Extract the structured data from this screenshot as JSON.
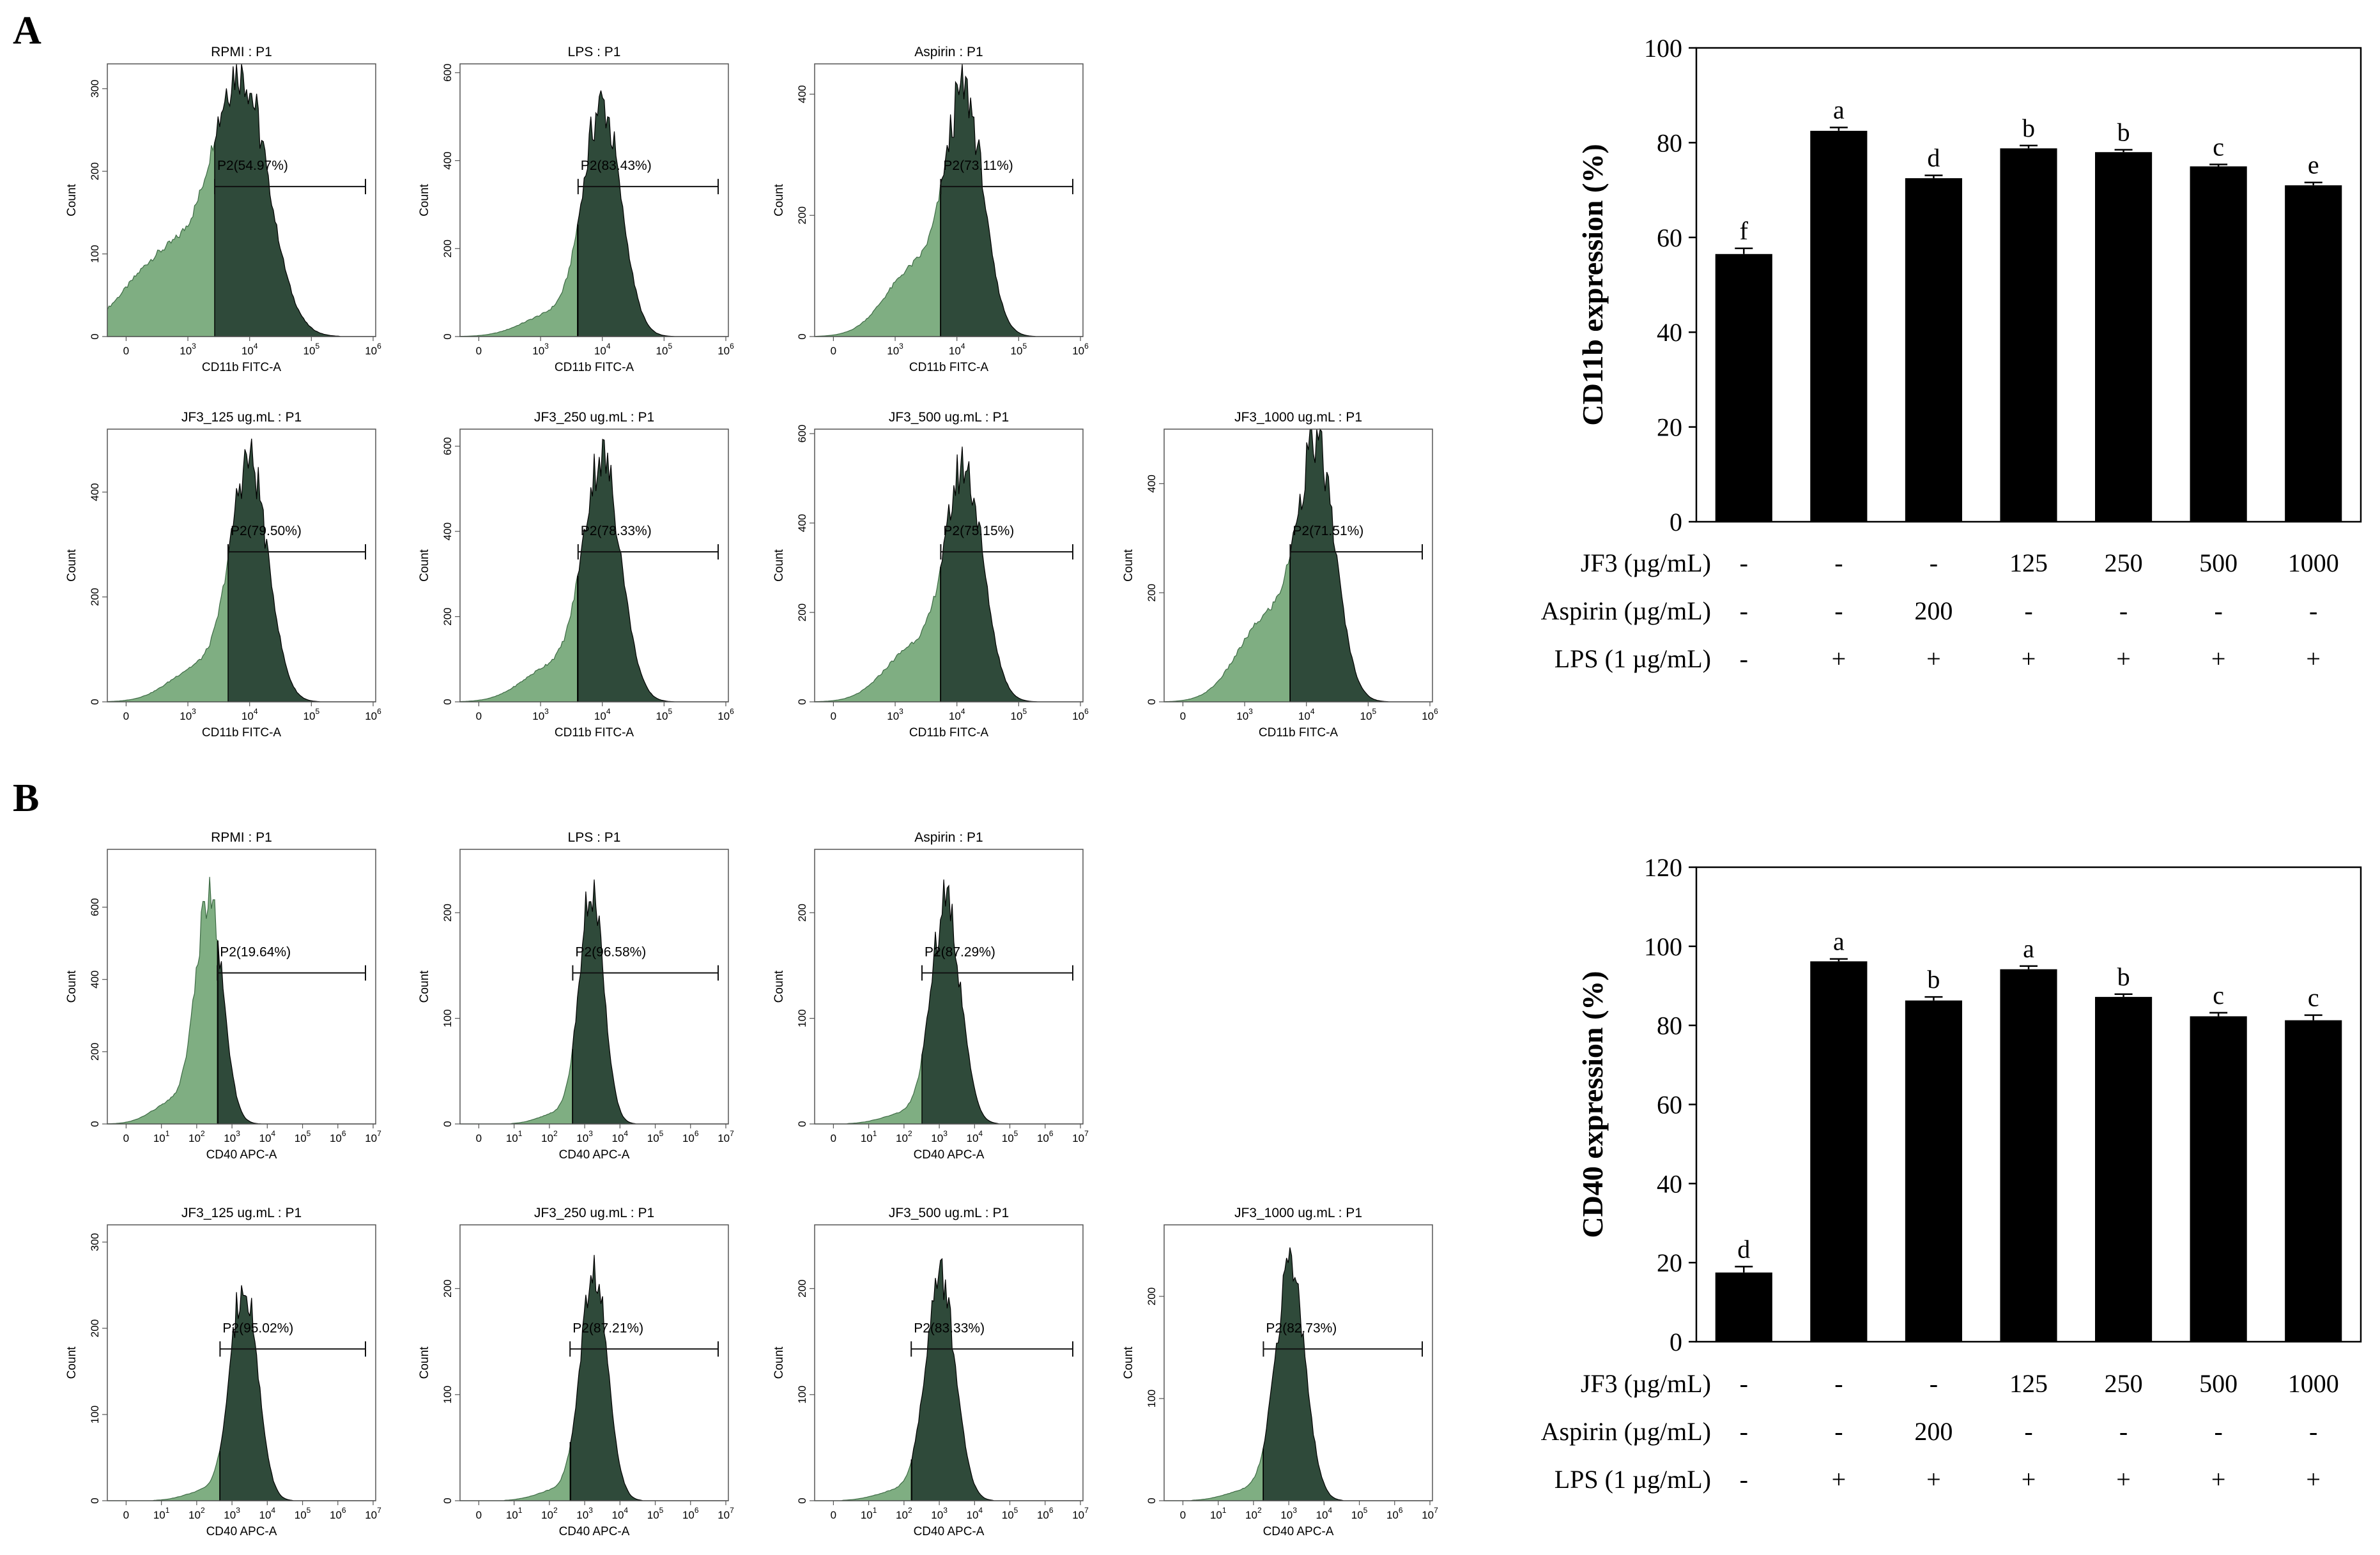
{
  "panels": [
    {
      "letter": "A",
      "histograms": [
        {
          "title": "RPMI : P1",
          "gate": "P2(54.97%)",
          "xlabel": "CD11b FITC-A",
          "ylabel": "Count",
          "ymax": 330,
          "yticks": [
            0,
            100,
            200,
            300
          ],
          "xticks": [
            {
              "b": "0",
              "e": ""
            },
            {
              "b": "10",
              "e": "3"
            },
            {
              "b": "10",
              "e": "4"
            },
            {
              "b": "10",
              "e": "5"
            },
            {
              "b": "10",
              "e": "6"
            }
          ],
          "peak": 300,
          "mode": 0.5,
          "spread": 0.1,
          "shoulder": 0.35,
          "gateStart": 0.4
        },
        {
          "title": "LPS : P1",
          "gate": "P2(83.43%)",
          "xlabel": "CD11b FITC-A",
          "ylabel": "Count",
          "ymax": 620,
          "yticks": [
            0,
            200,
            400,
            600
          ],
          "xticks": [
            {
              "b": "0",
              "e": ""
            },
            {
              "b": "10",
              "e": "3"
            },
            {
              "b": "10",
              "e": "4"
            },
            {
              "b": "10",
              "e": "5"
            },
            {
              "b": "10",
              "e": "6"
            }
          ],
          "peak": 520,
          "mode": 0.53,
          "spread": 0.07,
          "shoulder": 0.1,
          "gateStart": 0.44
        },
        {
          "title": "Aspirin : P1",
          "gate": "P2(73.11%)",
          "xlabel": "CD11b FITC-A",
          "ylabel": "Count",
          "ymax": 450,
          "yticks": [
            0,
            200,
            400
          ],
          "xticks": [
            {
              "b": "0",
              "e": ""
            },
            {
              "b": "10",
              "e": "3"
            },
            {
              "b": "10",
              "e": "4"
            },
            {
              "b": "10",
              "e": "5"
            },
            {
              "b": "10",
              "e": "6"
            }
          ],
          "peak": 380,
          "mode": 0.56,
          "spread": 0.07,
          "shoulder": 0.3,
          "gateStart": 0.47
        },
        {
          "title": "JF3_125 ug.mL : P1",
          "gate": "P2(79.50%)",
          "xlabel": "CD11b FITC-A",
          "ylabel": "Count",
          "ymax": 520,
          "yticks": [
            0,
            200,
            400
          ],
          "xticks": [
            {
              "b": "0",
              "e": ""
            },
            {
              "b": "10",
              "e": "3"
            },
            {
              "b": "10",
              "e": "4"
            },
            {
              "b": "10",
              "e": "5"
            },
            {
              "b": "10",
              "e": "6"
            }
          ],
          "peak": 450,
          "mode": 0.53,
          "spread": 0.07,
          "shoulder": 0.15,
          "gateStart": 0.45
        },
        {
          "title": "JF3_250 ug.mL : P1",
          "gate": "P2(78.33%)",
          "xlabel": "CD11b FITC-A",
          "ylabel": "Count",
          "ymax": 640,
          "yticks": [
            0,
            200,
            400,
            600
          ],
          "xticks": [
            {
              "b": "0",
              "e": ""
            },
            {
              "b": "10",
              "e": "3"
            },
            {
              "b": "10",
              "e": "4"
            },
            {
              "b": "10",
              "e": "5"
            },
            {
              "b": "10",
              "e": "6"
            }
          ],
          "peak": 560,
          "mode": 0.53,
          "spread": 0.07,
          "shoulder": 0.15,
          "gateStart": 0.44
        },
        {
          "title": "JF3_500 ug.mL : P1",
          "gate": "P2(75.15%)",
          "xlabel": "CD11b FITC-A",
          "ylabel": "Count",
          "ymax": 610,
          "yticks": [
            0,
            200,
            400,
            600
          ],
          "xticks": [
            {
              "b": "0",
              "e": ""
            },
            {
              "b": "10",
              "e": "3"
            },
            {
              "b": "10",
              "e": "4"
            },
            {
              "b": "10",
              "e": "5"
            },
            {
              "b": "10",
              "e": "6"
            }
          ],
          "peak": 500,
          "mode": 0.56,
          "spread": 0.07,
          "shoulder": 0.25,
          "gateStart": 0.47
        },
        {
          "title": "JF3_1000 ug.mL : P1",
          "gate": "P2(71.51%)",
          "xlabel": "CD11b FITC-A",
          "ylabel": "Count",
          "ymax": 500,
          "yticks": [
            0,
            200,
            400
          ],
          "xticks": [
            {
              "b": "0",
              "e": ""
            },
            {
              "b": "10",
              "e": "3"
            },
            {
              "b": "10",
              "e": "4"
            },
            {
              "b": "10",
              "e": "5"
            },
            {
              "b": "10",
              "e": "6"
            }
          ],
          "peak": 440,
          "mode": 0.57,
          "spread": 0.07,
          "shoulder": 0.35,
          "gateStart": 0.47
        }
      ]
    },
    {
      "letter": "B",
      "histograms": [
        {
          "title": "RPMI : P1",
          "gate": "P2(19.64%)",
          "xlabel": "CD40 APC-A",
          "ylabel": "Count",
          "ymax": 760,
          "yticks": [
            0,
            200,
            400,
            600
          ],
          "xticks": [
            {
              "b": "0",
              "e": ""
            },
            {
              "b": "10",
              "e": "1"
            },
            {
              "b": "10",
              "e": "2"
            },
            {
              "b": "10",
              "e": "3"
            },
            {
              "b": "10",
              "e": "4"
            },
            {
              "b": "10",
              "e": "5"
            },
            {
              "b": "10",
              "e": "6"
            },
            {
              "b": "10",
              "e": "7"
            }
          ],
          "peak": 620,
          "mode": 0.38,
          "spread": 0.05,
          "shoulder": 0.1,
          "gateStart": 0.41
        },
        {
          "title": "LPS : P1",
          "gate": "P2(96.58%)",
          "xlabel": "CD40 APC-A",
          "ylabel": "Count",
          "ymax": 260,
          "yticks": [
            0,
            100,
            200
          ],
          "xticks": [
            {
              "b": "0",
              "e": ""
            },
            {
              "b": "10",
              "e": "1"
            },
            {
              "b": "10",
              "e": "2"
            },
            {
              "b": "10",
              "e": "3"
            },
            {
              "b": "10",
              "e": "4"
            },
            {
              "b": "10",
              "e": "5"
            },
            {
              "b": "10",
              "e": "6"
            },
            {
              "b": "10",
              "e": "7"
            }
          ],
          "peak": 220,
          "mode": 0.49,
          "spread": 0.045,
          "shoulder": 0.05,
          "gateStart": 0.42
        },
        {
          "title": "Aspirin : P1",
          "gate": "P2(87.29%)",
          "xlabel": "CD40 APC-A",
          "ylabel": "Count",
          "ymax": 260,
          "yticks": [
            0,
            100,
            200
          ],
          "xticks": [
            {
              "b": "0",
              "e": ""
            },
            {
              "b": "10",
              "e": "1"
            },
            {
              "b": "10",
              "e": "2"
            },
            {
              "b": "10",
              "e": "3"
            },
            {
              "b": "10",
              "e": "4"
            },
            {
              "b": "10",
              "e": "5"
            },
            {
              "b": "10",
              "e": "6"
            },
            {
              "b": "10",
              "e": "7"
            }
          ],
          "peak": 210,
          "mode": 0.49,
          "spread": 0.055,
          "shoulder": 0.05,
          "gateStart": 0.4
        },
        {
          "title": "JF3_125 ug.mL : P1",
          "gate": "P2(95.02%)",
          "xlabel": "CD40 APC-A",
          "ylabel": "Count",
          "ymax": 320,
          "yticks": [
            0,
            100,
            200,
            300
          ],
          "xticks": [
            {
              "b": "0",
              "e": ""
            },
            {
              "b": "10",
              "e": "1"
            },
            {
              "b": "10",
              "e": "2"
            },
            {
              "b": "10",
              "e": "3"
            },
            {
              "b": "10",
              "e": "4"
            },
            {
              "b": "10",
              "e": "5"
            },
            {
              "b": "10",
              "e": "6"
            },
            {
              "b": "10",
              "e": "7"
            }
          ],
          "peak": 255,
          "mode": 0.51,
          "spread": 0.05,
          "shoulder": 0.05,
          "gateStart": 0.42
        },
        {
          "title": "JF3_250 ug.mL : P1",
          "gate": "P2(87.21%)",
          "xlabel": "CD40 APC-A",
          "ylabel": "Count",
          "ymax": 260,
          "yticks": [
            0,
            100,
            200
          ],
          "xticks": [
            {
              "b": "0",
              "e": ""
            },
            {
              "b": "10",
              "e": "1"
            },
            {
              "b": "10",
              "e": "2"
            },
            {
              "b": "10",
              "e": "3"
            },
            {
              "b": "10",
              "e": "4"
            },
            {
              "b": "10",
              "e": "5"
            },
            {
              "b": "10",
              "e": "6"
            },
            {
              "b": "10",
              "e": "7"
            }
          ],
          "peak": 215,
          "mode": 0.5,
          "spread": 0.05,
          "shoulder": 0.05,
          "gateStart": 0.41
        },
        {
          "title": "JF3_500 ug.mL : P1",
          "gate": "P2(83.33%)",
          "xlabel": "CD40 APC-A",
          "ylabel": "Count",
          "ymax": 260,
          "yticks": [
            0,
            100,
            200
          ],
          "xticks": [
            {
              "b": "0",
              "e": ""
            },
            {
              "b": "10",
              "e": "1"
            },
            {
              "b": "10",
              "e": "2"
            },
            {
              "b": "10",
              "e": "3"
            },
            {
              "b": "10",
              "e": "4"
            },
            {
              "b": "10",
              "e": "5"
            },
            {
              "b": "10",
              "e": "6"
            },
            {
              "b": "10",
              "e": "7"
            }
          ],
          "peak": 210,
          "mode": 0.47,
          "spread": 0.055,
          "shoulder": 0.05,
          "gateStart": 0.36
        },
        {
          "title": "JF3_1000 ug.mL : P1",
          "gate": "P2(82.73%)",
          "xlabel": "CD40 APC-A",
          "ylabel": "Count",
          "ymax": 270,
          "yticks": [
            0,
            100,
            200
          ],
          "xticks": [
            {
              "b": "0",
              "e": ""
            },
            {
              "b": "10",
              "e": "1"
            },
            {
              "b": "10",
              "e": "2"
            },
            {
              "b": "10",
              "e": "3"
            },
            {
              "b": "10",
              "e": "4"
            },
            {
              "b": "10",
              "e": "5"
            },
            {
              "b": "10",
              "e": "6"
            },
            {
              "b": "10",
              "e": "7"
            }
          ],
          "peak": 230,
          "mode": 0.47,
          "spread": 0.055,
          "shoulder": 0.05,
          "gateStart": 0.37
        }
      ]
    }
  ],
  "colors": {
    "gated_fill": "#2f4a3a",
    "ungated_fill": "#7fae82",
    "bar": "#000000"
  },
  "chart_data": [
    {
      "type": "bar",
      "title": "",
      "xlabel": "",
      "ylabel": "CD11b expression (%)",
      "ylim": [
        0,
        100
      ],
      "yticks": [
        0,
        20,
        40,
        60,
        80,
        100
      ],
      "values": [
        56.5,
        82.5,
        72.5,
        78.8,
        78.0,
        75.0,
        71.0
      ],
      "errors": [
        1.2,
        0.7,
        0.6,
        0.6,
        0.5,
        0.4,
        0.6
      ],
      "letters": [
        "f",
        "a",
        "d",
        "b",
        "b",
        "c",
        "e"
      ],
      "rows": [
        {
          "label": "JF3 (µg/mL)",
          "cells": [
            "-",
            "-",
            "-",
            "125",
            "250",
            "500",
            "1000"
          ]
        },
        {
          "label": "Aspirin (µg/mL)",
          "cells": [
            "-",
            "-",
            "200",
            "-",
            "-",
            "-",
            "-"
          ]
        },
        {
          "label": "LPS (1 µg/mL)",
          "cells": [
            "-",
            "+",
            "+",
            "+",
            "+",
            "+",
            "+"
          ]
        }
      ]
    },
    {
      "type": "bar",
      "title": "",
      "xlabel": "",
      "ylabel": "CD40 expression (%)",
      "ylim": [
        0,
        120
      ],
      "yticks": [
        0,
        20,
        40,
        60,
        80,
        100,
        120
      ],
      "values": [
        17.5,
        96.2,
        86.3,
        94.2,
        87.2,
        82.3,
        81.3
      ],
      "errors": [
        1.5,
        0.6,
        0.9,
        0.8,
        0.7,
        0.9,
        1.3
      ],
      "letters": [
        "d",
        "a",
        "b",
        "a",
        "b",
        "c",
        "c"
      ],
      "rows": [
        {
          "label": "JF3 (µg/mL)",
          "cells": [
            "-",
            "-",
            "-",
            "125",
            "250",
            "500",
            "1000"
          ]
        },
        {
          "label": "Aspirin (µg/mL)",
          "cells": [
            "-",
            "-",
            "200",
            "-",
            "-",
            "-",
            "-"
          ]
        },
        {
          "label": "LPS (1 µg/mL)",
          "cells": [
            "-",
            "+",
            "+",
            "+",
            "+",
            "+",
            "+"
          ]
        }
      ]
    }
  ]
}
